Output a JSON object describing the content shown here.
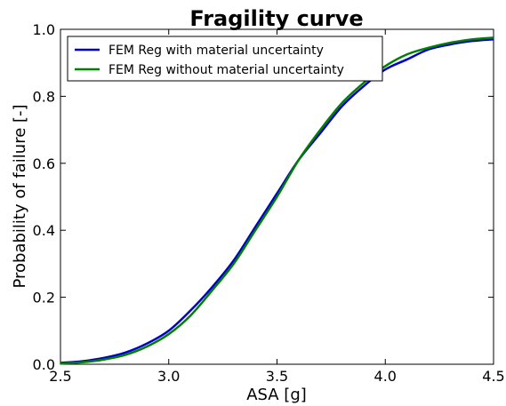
{
  "chart_data": {
    "type": "line",
    "title": "Fragility curve",
    "xlabel": "ASA [g]",
    "ylabel": "Probability of failure [-]",
    "xlim": [
      2.5,
      4.5
    ],
    "ylim": [
      0.0,
      1.0
    ],
    "x_ticks": [
      "2.5",
      "3.0",
      "3.5",
      "4.0",
      "4.5"
    ],
    "y_ticks": [
      "0.0",
      "0.2",
      "0.4",
      "0.6",
      "0.8",
      "1.0"
    ],
    "grid": false,
    "legend_position": "top-left",
    "x": [
      2.5,
      2.6,
      2.7,
      2.8,
      2.9,
      3.0,
      3.1,
      3.2,
      3.3,
      3.4,
      3.5,
      3.6,
      3.7,
      3.8,
      3.9,
      4.0,
      4.1,
      4.2,
      4.3,
      4.4,
      4.5
    ],
    "series": [
      {
        "name": "FEM Reg with material uncertainty",
        "color": "#0000cc",
        "values": [
          0.004,
          0.009,
          0.019,
          0.035,
          0.062,
          0.1,
          0.16,
          0.23,
          0.31,
          0.41,
          0.51,
          0.61,
          0.69,
          0.77,
          0.83,
          0.88,
          0.91,
          0.94,
          0.955,
          0.965,
          0.97
        ]
      },
      {
        "name": "FEM Reg without material uncertainty",
        "color": "#008000",
        "values": [
          0.002,
          0.006,
          0.014,
          0.028,
          0.053,
          0.09,
          0.145,
          0.22,
          0.3,
          0.4,
          0.5,
          0.61,
          0.7,
          0.78,
          0.84,
          0.89,
          0.925,
          0.945,
          0.96,
          0.97,
          0.975
        ]
      }
    ]
  }
}
